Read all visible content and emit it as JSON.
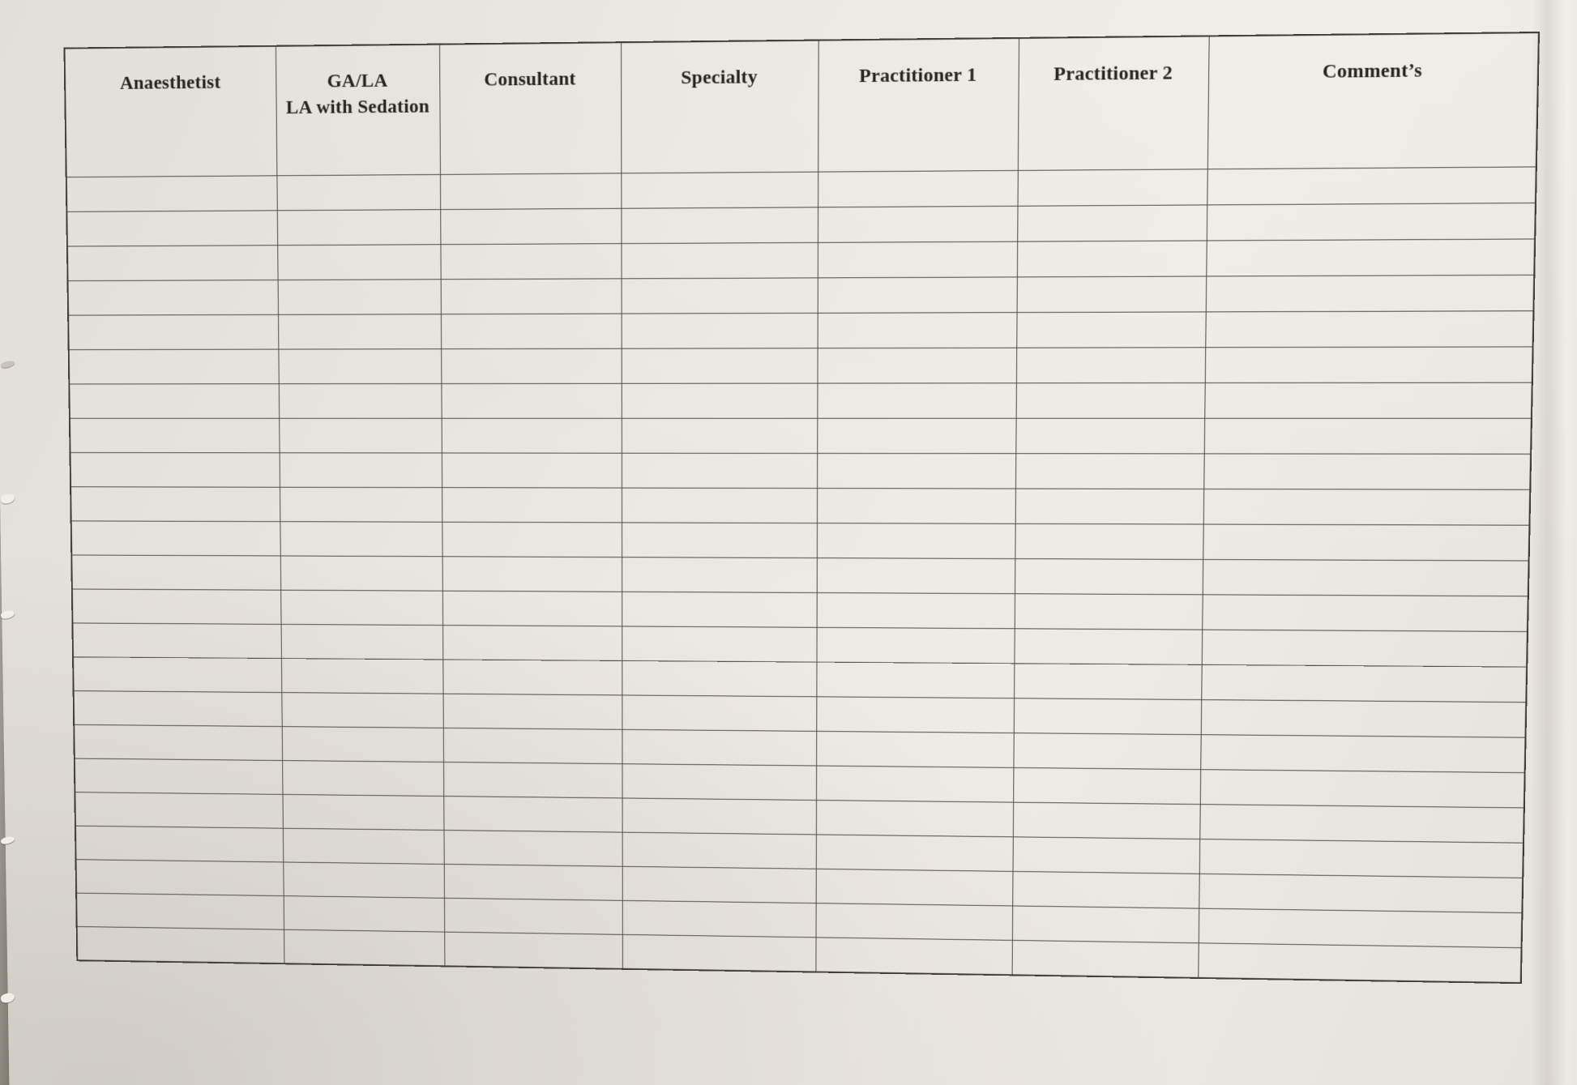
{
  "colors": {
    "paper": "#e9e6df",
    "paper_dark_edge": "#e2dfd8",
    "backdrop": "#a7a198",
    "grid_line": "#4f4b44",
    "grid_line_outer": "#3e3a34",
    "header_text": "#272420"
  },
  "table": {
    "columns": [
      {
        "label": "Anaesthetist"
      },
      {
        "label": "GA/LA\nLA with Sedation"
      },
      {
        "label": "Consultant"
      },
      {
        "label": "Specialty"
      },
      {
        "label": "Practitioner 1"
      },
      {
        "label": "Practitioner 2"
      },
      {
        "label": "Comment’s"
      }
    ],
    "row_count": 23,
    "all_body_cells_empty": true
  }
}
